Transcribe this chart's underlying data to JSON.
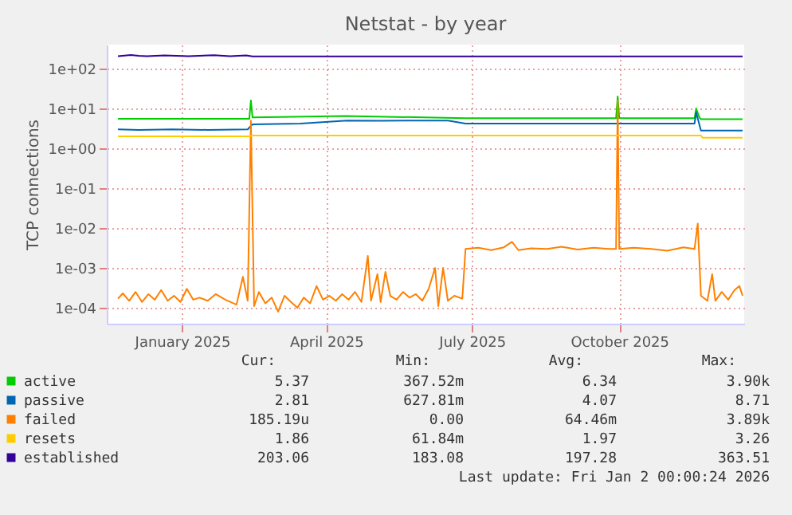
{
  "chart_data": {
    "type": "line",
    "title": "Netstat - by year",
    "ylabel": "TCP connections",
    "log": true,
    "grid": true,
    "legend": "bottom",
    "xlim": [
      "2024-11-30",
      "2026-01-02"
    ],
    "xticks": [
      {
        "value": "2025-01-16",
        "label": "January 2025"
      },
      {
        "value": "2025-04-16",
        "label": "April 2025"
      },
      {
        "value": "2025-07-16",
        "label": "July 2025"
      },
      {
        "value": "2025-10-16",
        "label": "October 2025"
      }
    ],
    "ylim": [
      4e-05,
      400
    ],
    "yticks": [
      {
        "value": 0.0001,
        "label": "1e-04"
      },
      {
        "value": 0.001,
        "label": "1e-03"
      },
      {
        "value": 0.01,
        "label": "1e-02"
      },
      {
        "value": 0.1,
        "label": "1e-01"
      },
      {
        "value": 1,
        "label": "1e+00"
      },
      {
        "value": 10,
        "label": "1e+01"
      },
      {
        "value": 100,
        "label": "1e+02"
      }
    ],
    "series": [
      {
        "name": "active",
        "color": "#00cc00",
        "x": [
          "2024-12-07",
          "2025-02-27",
          "2025-02-28",
          "2025-03-01",
          "2025-04-28",
          "2025-07-12",
          "2025-10-14",
          "2025-10-15",
          "2025-10-16",
          "2025-12-02",
          "2025-12-03",
          "2025-12-05",
          "2025-12-06",
          "2026-01-01"
        ],
        "values": [
          5.5,
          5.5,
          16,
          6,
          6.5,
          5.7,
          5.7,
          20,
          5.7,
          5.7,
          10,
          6,
          5.37,
          5.37
        ]
      },
      {
        "name": "passive",
        "color": "#0066b3",
        "x": [
          "2024-12-07",
          "2024-12-20",
          "2025-01-10",
          "2025-02-01",
          "2025-02-26",
          "2025-03-01",
          "2025-03-31",
          "2025-04-29",
          "2025-05-20",
          "2025-06-10",
          "2025-07-01",
          "2025-07-12",
          "2025-12-02",
          "2025-12-03",
          "2025-12-06",
          "2026-01-01"
        ],
        "values": [
          3,
          2.9,
          3,
          2.9,
          3,
          4,
          4.2,
          5,
          4.9,
          5,
          5,
          4.2,
          4.2,
          8,
          2.81,
          2.81
        ]
      },
      {
        "name": "failed",
        "color": "#ff8000",
        "x": [
          "2024-12-07",
          "2024-12-10",
          "2024-12-14",
          "2024-12-18",
          "2024-12-22",
          "2024-12-26",
          "2024-12-30",
          "2025-01-03",
          "2025-01-07",
          "2025-01-11",
          "2025-01-15",
          "2025-01-19",
          "2025-01-23",
          "2025-01-27",
          "2025-02-01",
          "2025-02-06",
          "2025-02-12",
          "2025-02-19",
          "2025-02-23",
          "2025-02-26",
          "2025-02-28",
          "2025-03-02",
          "2025-03-05",
          "2025-03-09",
          "2025-03-13",
          "2025-03-17",
          "2025-03-21",
          "2025-03-25",
          "2025-03-29",
          "2025-04-02",
          "2025-04-06",
          "2025-04-10",
          "2025-04-14",
          "2025-04-18",
          "2025-04-22",
          "2025-04-26",
          "2025-04-30",
          "2025-05-04",
          "2025-05-08",
          "2025-05-12",
          "2025-05-14",
          "2025-05-18",
          "2025-05-20",
          "2025-05-23",
          "2025-05-26",
          "2025-05-30",
          "2025-06-03",
          "2025-06-07",
          "2025-06-11",
          "2025-06-15",
          "2025-06-19",
          "2025-06-23",
          "2025-06-25",
          "2025-06-28",
          "2025-07-01",
          "2025-07-05",
          "2025-07-10",
          "2025-07-12",
          "2025-07-20",
          "2025-07-28",
          "2025-08-05",
          "2025-08-10",
          "2025-08-14",
          "2025-08-22",
          "2025-09-01",
          "2025-09-10",
          "2025-09-20",
          "2025-09-30",
          "2025-10-10",
          "2025-10-14",
          "2025-10-15",
          "2025-10-16",
          "2025-10-25",
          "2025-11-05",
          "2025-11-15",
          "2025-11-25",
          "2025-12-02",
          "2025-12-04",
          "2025-12-06",
          "2025-12-10",
          "2025-12-13",
          "2025-12-15",
          "2025-12-19",
          "2025-12-23",
          "2025-12-27",
          "2025-12-30",
          "2026-01-01"
        ],
        "values": [
          0.00017,
          0.00023,
          0.00015,
          0.00025,
          0.00014,
          0.00022,
          0.00016,
          0.00028,
          0.00015,
          0.0002,
          0.00014,
          0.0003,
          0.00016,
          0.00018,
          0.00015,
          0.00022,
          0.00016,
          0.00012,
          0.0006,
          0.00015,
          5,
          0.00011,
          0.00025,
          0.00013,
          0.00018,
          8e-05,
          0.0002,
          0.00014,
          0.0001,
          0.00018,
          0.00013,
          0.00035,
          0.00016,
          0.0002,
          0.00015,
          0.00022,
          0.00016,
          0.00025,
          0.00014,
          0.002,
          0.00015,
          0.0007,
          0.00014,
          0.0008,
          0.0002,
          0.00016,
          0.00025,
          0.00018,
          0.00022,
          0.00015,
          0.0003,
          0.001,
          0.00011,
          0.001,
          0.00015,
          0.0002,
          0.00017,
          0.003,
          0.0032,
          0.0028,
          0.0033,
          0.0045,
          0.0028,
          0.0031,
          0.003,
          0.0034,
          0.0029,
          0.0032,
          0.003,
          0.003,
          16,
          0.003,
          0.0032,
          0.003,
          0.0027,
          0.0033,
          0.003,
          0.013,
          0.0002,
          0.00015,
          0.0007,
          0.00015,
          0.00025,
          0.00016,
          0.00028,
          0.00035,
          0.0002
        ]
      },
      {
        "name": "resets",
        "color": "#ffcc00",
        "x": [
          "2024-12-07",
          "2025-02-27",
          "2025-03-01",
          "2025-12-06",
          "2025-12-07",
          "2026-01-01"
        ],
        "values": [
          2,
          2,
          2.1,
          2.1,
          1.86,
          1.86
        ]
      },
      {
        "name": "established",
        "color": "#330099",
        "x": [
          "2024-12-07",
          "2024-12-15",
          "2024-12-20",
          "2024-12-25",
          "2025-01-05",
          "2025-01-20",
          "2025-02-05",
          "2025-02-15",
          "2025-02-25",
          "2025-03-01",
          "2026-01-01"
        ],
        "values": [
          205,
          220,
          210,
          205,
          215,
          205,
          218,
          205,
          215,
          203,
          203.06
        ]
      }
    ],
    "annotations": [
      "Cur:",
      "Min:",
      "Avg:",
      "Max:",
      "5.37",
      "367.52m",
      "6.34",
      "3.90k",
      "2.81",
      "627.81m",
      "4.07",
      "8.71",
      "185.19u",
      "0.00",
      "64.46m",
      "3.89k",
      "1.86",
      "61.84m",
      "1.97",
      "3.26",
      "203.06",
      "183.08",
      "197.28",
      "363.51",
      "Last update: Fri Jan  2 00:00:24 2026"
    ]
  }
}
